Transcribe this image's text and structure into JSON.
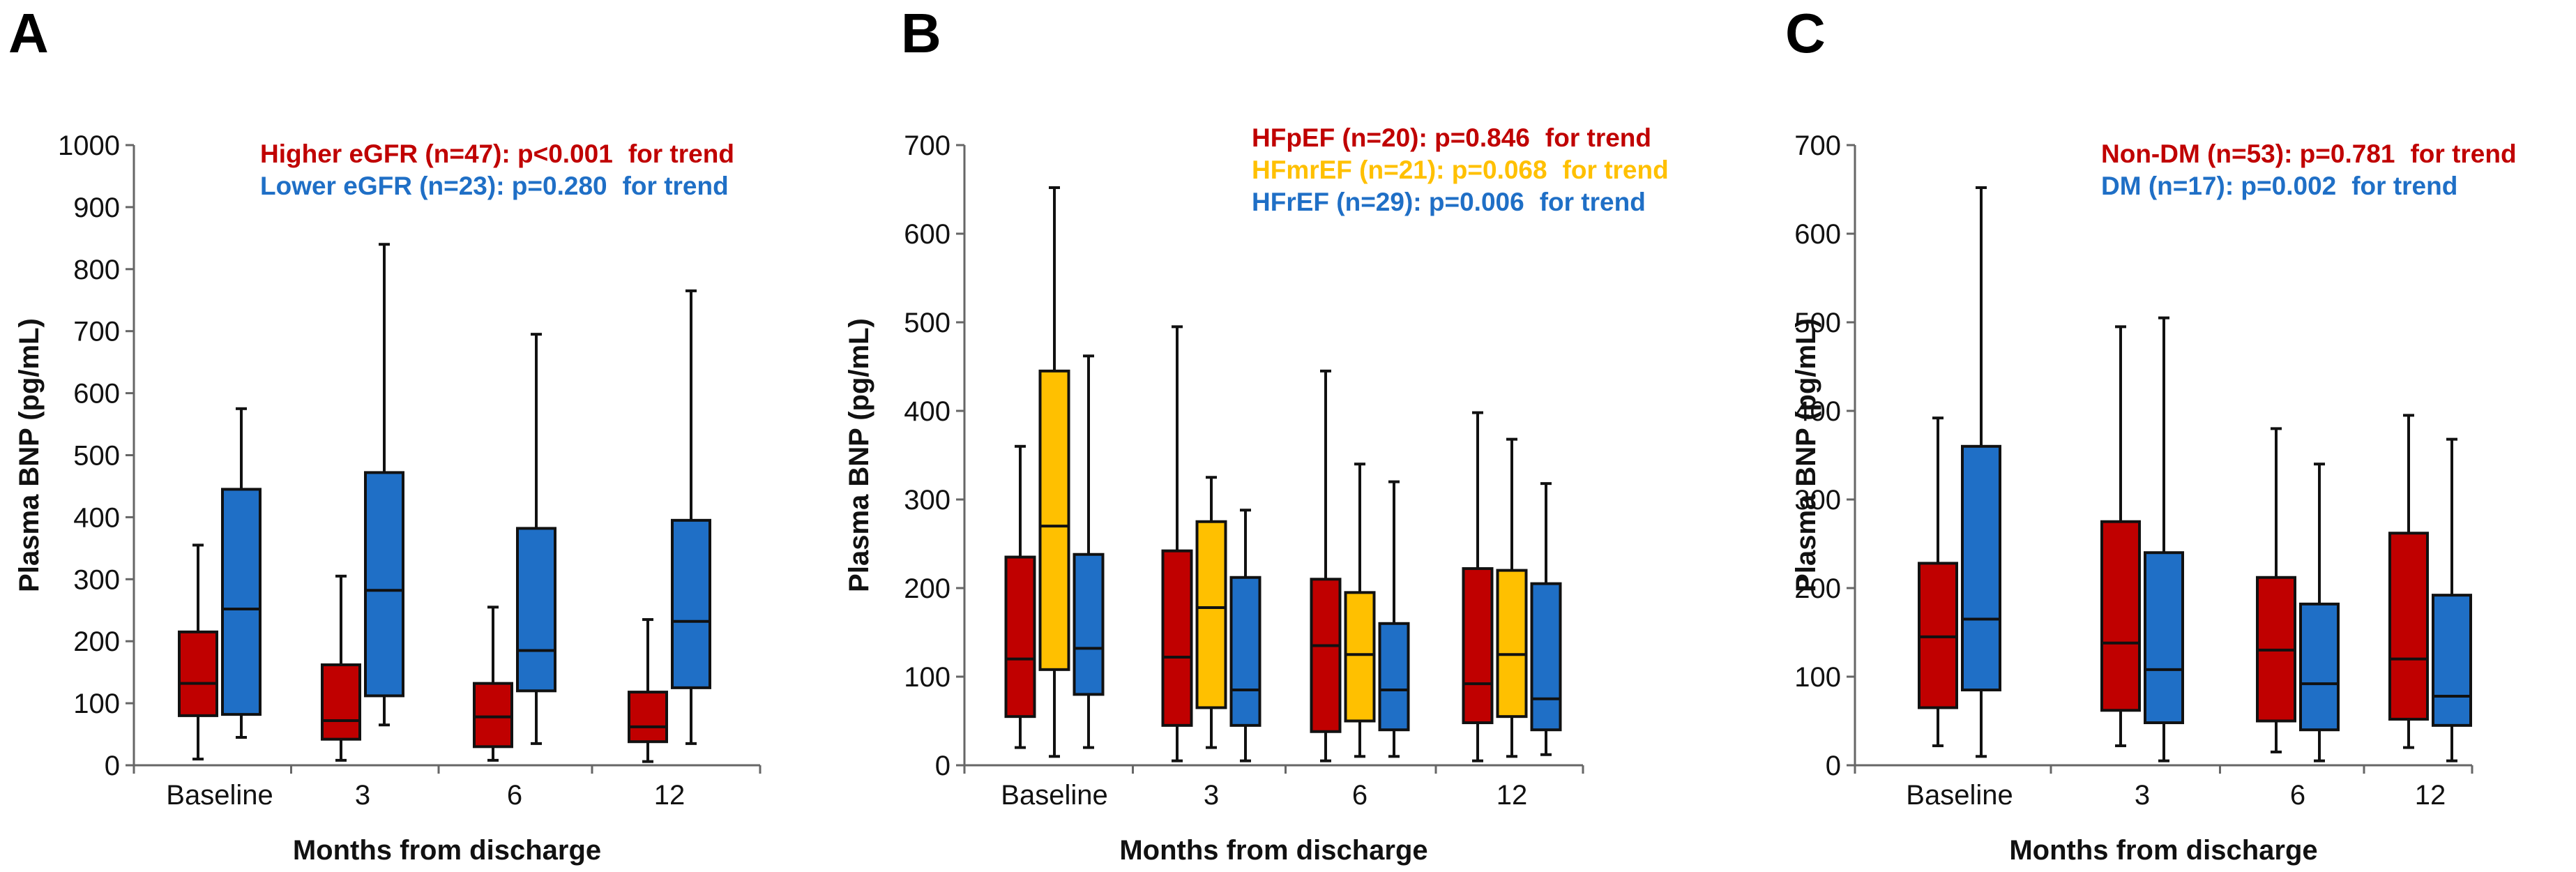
{
  "chart_data": [
    {
      "type": "boxplot",
      "panel_label": "A",
      "categories": [
        "Baseline",
        "3",
        "6",
        "12"
      ],
      "xlabel": "Months from discharge",
      "ylabel": "Plasma BNP (pg/mL)",
      "ylim": [
        0,
        1000
      ],
      "yticks": [
        0,
        100,
        200,
        300,
        400,
        500,
        600,
        700,
        800,
        900,
        1000
      ],
      "legend": [
        {
          "name": "Higher eGFR (n=47): p<0.001",
          "suffix": "for trend",
          "color": "#c00000"
        },
        {
          "name": "Lower eGFR (n=23): p=0.280",
          "suffix": "for trend",
          "color": "#1f6fc6"
        }
      ],
      "series": [
        {
          "name": "Higher eGFR",
          "color": "#c00000",
          "boxes": [
            {
              "min": 10,
              "q1": 80,
              "median": 132,
              "q3": 215,
              "max": 355
            },
            {
              "min": 8,
              "q1": 42,
              "median": 72,
              "q3": 162,
              "max": 305
            },
            {
              "min": 8,
              "q1": 30,
              "median": 78,
              "q3": 132,
              "max": 255
            },
            {
              "min": 6,
              "q1": 38,
              "median": 62,
              "q3": 118,
              "max": 235
            }
          ]
        },
        {
          "name": "Lower eGFR",
          "color": "#1f6fc6",
          "boxes": [
            {
              "min": 45,
              "q1": 82,
              "median": 252,
              "q3": 445,
              "max": 575
            },
            {
              "min": 65,
              "q1": 112,
              "median": 282,
              "q3": 472,
              "max": 840
            },
            {
              "min": 35,
              "q1": 120,
              "median": 185,
              "q3": 382,
              "max": 695
            },
            {
              "min": 35,
              "q1": 125,
              "median": 232,
              "q3": 395,
              "max": 765
            }
          ]
        }
      ]
    },
    {
      "type": "boxplot",
      "panel_label": "B",
      "categories": [
        "Baseline",
        "3",
        "6",
        "12"
      ],
      "xlabel": "Months from discharge",
      "ylabel": "Plasma BNP (pg/mL)",
      "ylim": [
        0,
        700
      ],
      "yticks": [
        0,
        100,
        200,
        300,
        400,
        500,
        600,
        700
      ],
      "legend": [
        {
          "name": "HFpEF (n=20): p=0.846",
          "suffix": "for trend",
          "color": "#c00000"
        },
        {
          "name": "HFmrEF (n=21): p=0.068",
          "suffix": "for trend",
          "color": "#ffc000"
        },
        {
          "name": "HFrEF (n=29): p=0.006",
          "suffix": "for trend",
          "color": "#1f6fc6"
        }
      ],
      "series": [
        {
          "name": "HFpEF",
          "color": "#c00000",
          "boxes": [
            {
              "min": 20,
              "q1": 55,
              "median": 120,
              "q3": 235,
              "max": 360
            },
            {
              "min": 5,
              "q1": 45,
              "median": 122,
              "q3": 242,
              "max": 495
            },
            {
              "min": 5,
              "q1": 38,
              "median": 135,
              "q3": 210,
              "max": 445
            },
            {
              "min": 5,
              "q1": 48,
              "median": 92,
              "q3": 222,
              "max": 398
            }
          ]
        },
        {
          "name": "HFmrEF",
          "color": "#ffc000",
          "boxes": [
            {
              "min": 10,
              "q1": 108,
              "median": 270,
              "q3": 445,
              "max": 652
            },
            {
              "min": 20,
              "q1": 65,
              "median": 178,
              "q3": 275,
              "max": 325
            },
            {
              "min": 10,
              "q1": 50,
              "median": 125,
              "q3": 195,
              "max": 340
            },
            {
              "min": 10,
              "q1": 55,
              "median": 125,
              "q3": 220,
              "max": 368
            }
          ]
        },
        {
          "name": "HFrEF",
          "color": "#1f6fc6",
          "boxes": [
            {
              "min": 20,
              "q1": 80,
              "median": 132,
              "q3": 238,
              "max": 462
            },
            {
              "min": 5,
              "q1": 45,
              "median": 85,
              "q3": 212,
              "max": 288
            },
            {
              "min": 10,
              "q1": 40,
              "median": 85,
              "q3": 160,
              "max": 320
            },
            {
              "min": 12,
              "q1": 40,
              "median": 75,
              "q3": 205,
              "max": 318
            }
          ]
        }
      ]
    },
    {
      "type": "boxplot",
      "panel_label": "C",
      "categories": [
        "Baseline",
        "3",
        "6",
        "12"
      ],
      "xlabel": "Months from discharge",
      "ylabel": "Plasma BNP (pg/mL)",
      "ylim": [
        0,
        700
      ],
      "yticks": [
        0,
        100,
        200,
        300,
        400,
        500,
        600,
        700
      ],
      "legend": [
        {
          "name": "Non-DM (n=53): p=0.781",
          "suffix": "for trend",
          "color": "#c00000"
        },
        {
          "name": "DM (n=17): p=0.002",
          "suffix": "for trend",
          "color": "#1f6fc6"
        }
      ],
      "series": [
        {
          "name": "Non-DM",
          "color": "#c00000",
          "boxes": [
            {
              "min": 22,
              "q1": 65,
              "median": 145,
              "q3": 228,
              "max": 392
            },
            {
              "min": 22,
              "q1": 62,
              "median": 138,
              "q3": 275,
              "max": 495
            },
            {
              "min": 15,
              "q1": 50,
              "median": 130,
              "q3": 212,
              "max": 380
            },
            {
              "min": 20,
              "q1": 52,
              "median": 120,
              "q3": 262,
              "max": 395
            }
          ]
        },
        {
          "name": "DM",
          "color": "#1f6fc6",
          "boxes": [
            {
              "min": 10,
              "q1": 85,
              "median": 165,
              "q3": 360,
              "max": 652
            },
            {
              "min": 5,
              "q1": 48,
              "median": 108,
              "q3": 240,
              "max": 505
            },
            {
              "min": 5,
              "q1": 40,
              "median": 92,
              "q3": 182,
              "max": 340
            },
            {
              "min": 5,
              "q1": 45,
              "median": 78,
              "q3": 192,
              "max": 368
            }
          ]
        }
      ]
    }
  ]
}
